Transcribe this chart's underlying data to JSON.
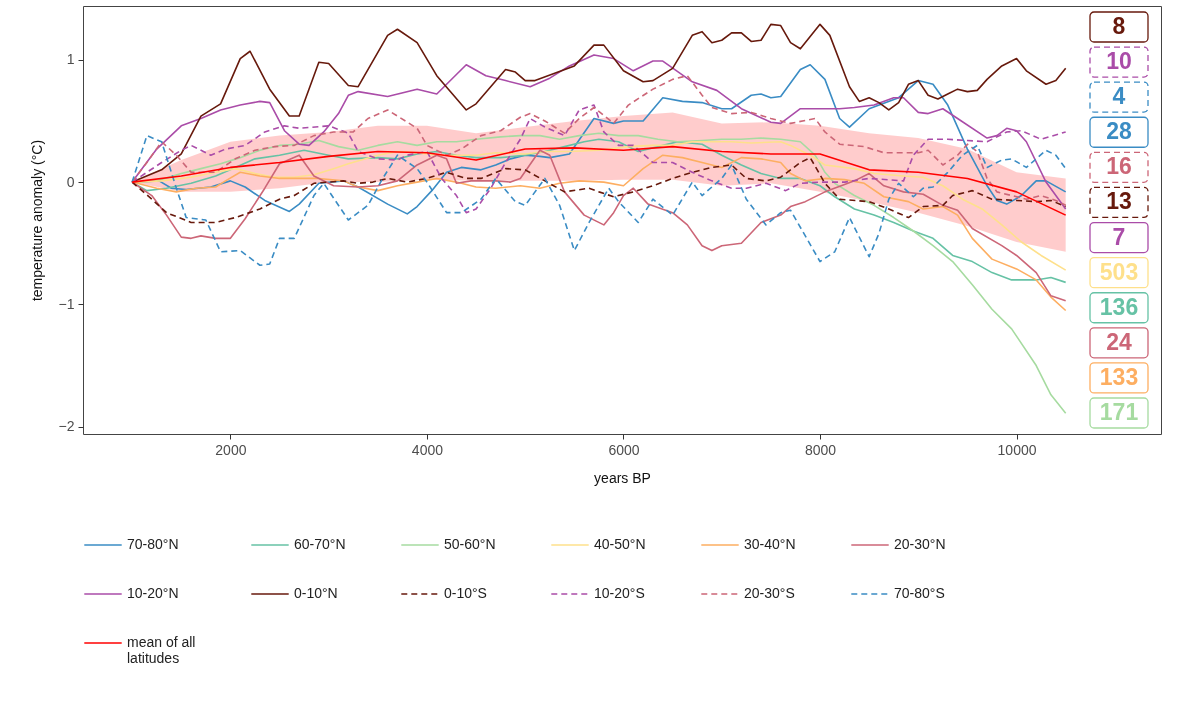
{
  "chart_data": {
    "type": "line",
    "xlabel": "years BP",
    "ylabel": "temperature anomaly (°C)",
    "xlim": [
      500,
      11470
    ],
    "ylim": [
      -2.06,
      1.44
    ],
    "xticks": [
      2000,
      4000,
      6000,
      8000,
      10000
    ],
    "yticks": [
      -2,
      -1,
      0,
      1
    ],
    "legend": "bottom",
    "annotations": [
      "8",
      "10",
      "4",
      "28",
      "16",
      "13",
      "7",
      "503",
      "136",
      "24",
      "133",
      "171"
    ],
    "series": [
      {
        "name": "70-80°N",
        "color": "#3a8cc4",
        "line_style": "solid",
        "x": [
          1000,
          1275,
          1400,
          1550,
          1800,
          2000,
          2150,
          2350,
          2600,
          2700,
          2900,
          3150,
          3300,
          3600,
          3800,
          3900,
          4050,
          4200,
          4350,
          4550,
          4700,
          4850,
          5000,
          5150,
          5250,
          5450,
          5700,
          5900,
          6000,
          6200,
          6400,
          6600,
          6800,
          7000,
          7100,
          7300,
          7400,
          7500,
          7600,
          7800,
          7900,
          8050,
          8200,
          8300,
          8500,
          8800,
          9000,
          9150,
          9300,
          9500,
          9700,
          9800,
          9900,
          10050,
          10200,
          10300,
          10500
        ],
        "values": [
          0,
          0.01,
          -0.05,
          -0.06,
          -0.04,
          0.01,
          -0.04,
          -0.15,
          -0.24,
          -0.18,
          -0.01,
          0.01,
          -0.04,
          -0.18,
          -0.26,
          -0.2,
          -0.07,
          0.08,
          0.12,
          0.1,
          0.14,
          0.19,
          0.22,
          0.21,
          0.2,
          0.23,
          0.52,
          0.48,
          0.5,
          0.5,
          0.69,
          0.66,
          0.65,
          0.6,
          0.6,
          0.71,
          0.72,
          0.69,
          0.7,
          0.92,
          0.96,
          0.84,
          0.52,
          0.45,
          0.6,
          0.69,
          0.83,
          0.8,
          0.63,
          0.27,
          -0.03,
          -0.15,
          -0.18,
          -0.11,
          0.01,
          0.01,
          -0.08
        ]
      },
      {
        "name": "60-70°N",
        "color": "#66c2a5",
        "line_style": "solid",
        "x": [
          1000,
          1150,
          1350,
          1600,
          1850,
          2050,
          2250,
          2500,
          2750,
          3000,
          3200,
          3500,
          3700,
          3900,
          4100,
          4300,
          4500,
          4750,
          5000,
          5200,
          5400,
          5600,
          5750,
          5950,
          6150,
          6350,
          6550,
          6800,
          7000,
          7200,
          7400,
          7600,
          7800,
          8000,
          8150,
          8350,
          8550,
          8750,
          8950,
          9150,
          9350,
          9550,
          9750,
          9950,
          10200,
          10350,
          10500
        ],
        "values": [
          0,
          -0.07,
          -0.05,
          -0.01,
          0.05,
          0.12,
          0.19,
          0.22,
          0.26,
          0.22,
          0.19,
          0.2,
          0.19,
          0.23,
          0.25,
          0.22,
          0.2,
          0.2,
          0.22,
          0.25,
          0.29,
          0.33,
          0.35,
          0.33,
          0.25,
          0.29,
          0.33,
          0.31,
          0.22,
          0.14,
          0.07,
          0.03,
          0.03,
          -0.03,
          -0.12,
          -0.22,
          -0.27,
          -0.33,
          -0.4,
          -0.46,
          -0.6,
          -0.65,
          -0.74,
          -0.8,
          -0.8,
          -0.78,
          -0.82
        ]
      },
      {
        "name": "50-60°N",
        "color": "#a6dba0",
        "line_style": "solid",
        "x": [
          1000,
          1250,
          1500,
          1700,
          1900,
          2100,
          2300,
          2500,
          2700,
          2900,
          3100,
          3300,
          3500,
          3700,
          3900,
          4100,
          4300,
          4500,
          4750,
          4950,
          5150,
          5350,
          5550,
          5750,
          5950,
          6150,
          6350,
          6550,
          6800,
          7000,
          7200,
          7400,
          7600,
          7800,
          7950,
          8050,
          8150,
          8350,
          8550,
          8750,
          8950,
          9150,
          9350,
          9550,
          9750,
          9950,
          10200,
          10350,
          10500
        ],
        "values": [
          0,
          0.01,
          0.07,
          0.11,
          0.15,
          0.2,
          0.26,
          0.3,
          0.31,
          0.34,
          0.29,
          0.26,
          0.3,
          0.33,
          0.3,
          0.33,
          0.33,
          0.35,
          0.37,
          0.38,
          0.38,
          0.35,
          0.38,
          0.4,
          0.38,
          0.38,
          0.35,
          0.33,
          0.34,
          0.35,
          0.35,
          0.36,
          0.35,
          0.33,
          0.22,
          0.08,
          -0.01,
          -0.11,
          -0.19,
          -0.29,
          -0.4,
          -0.52,
          -0.65,
          -0.84,
          -1.04,
          -1.2,
          -1.5,
          -1.74,
          -1.89
        ]
      },
      {
        "name": "40-50°N",
        "color": "#fee08b",
        "line_style": "solid",
        "x": [
          1000,
          1300,
          1600,
          1850,
          2050,
          2250,
          2450,
          2650,
          2850,
          3050,
          3200,
          3500,
          3700,
          3900,
          4100,
          4300,
          4500,
          4700,
          5000,
          5200,
          5450,
          5750,
          6050,
          6300,
          6500,
          6700,
          6900,
          7100,
          7300,
          7600,
          7700,
          7900,
          8050,
          8350,
          8550,
          8850,
          9050,
          9250,
          9450,
          9650,
          9850,
          10050,
          10250,
          10500
        ],
        "values": [
          0,
          0.01,
          0.04,
          0.08,
          0.11,
          0.07,
          0.04,
          0.04,
          0.06,
          0.11,
          0.15,
          0.22,
          0.25,
          0.24,
          0.22,
          0.22,
          0.22,
          0.24,
          0.23,
          0.25,
          0.25,
          0.26,
          0.29,
          0.3,
          0.3,
          0.33,
          0.33,
          0.33,
          0.32,
          0.33,
          0.3,
          0.22,
          0.14,
          0.11,
          0.07,
          0.05,
          0.04,
          -0.03,
          -0.14,
          -0.22,
          -0.35,
          -0.49,
          -0.6,
          -0.72
        ]
      },
      {
        "name": "30-40°N",
        "color": "#fdae61",
        "line_style": "solid",
        "x": [
          1000,
          1250,
          1450,
          1650,
          1850,
          1950,
          2100,
          2300,
          2500,
          2900,
          3150,
          3300,
          3500,
          3700,
          3900,
          4100,
          4300,
          4500,
          4700,
          4950,
          5150,
          5350,
          5550,
          5800,
          6000,
          6200,
          6400,
          6600,
          6800,
          7000,
          7200,
          7400,
          7600,
          7700,
          7850,
          8050,
          8250,
          8450,
          8650,
          8900,
          9050,
          9250,
          9400,
          9550,
          9750,
          10000,
          10200,
          10350,
          10500
        ],
        "values": [
          0,
          -0.05,
          -0.08,
          -0.05,
          -0.04,
          0.01,
          0.08,
          0.05,
          0.03,
          0.03,
          0.01,
          -0.04,
          -0.07,
          -0.03,
          0,
          0.03,
          0,
          -0.04,
          -0.05,
          -0.03,
          -0.05,
          -0.01,
          0.01,
          0,
          -0.03,
          0.11,
          0.22,
          0.2,
          0.16,
          0.12,
          0.2,
          0.19,
          0.16,
          0.07,
          0.01,
          0.03,
          0.02,
          -0.01,
          -0.12,
          -0.16,
          -0.22,
          -0.2,
          -0.27,
          -0.46,
          -0.63,
          -0.71,
          -0.8,
          -0.94,
          -1.05
        ]
      },
      {
        "name": "20-30°N",
        "color": "#cc6677",
        "line_style": "solid",
        "x": [
          1000,
          1200,
          1350,
          1500,
          1600,
          1700,
          1850,
          2000,
          2150,
          2350,
          2500,
          2700,
          2850,
          3050,
          3300,
          3500,
          3700,
          3900,
          4100,
          4200,
          4300,
          4450,
          4700,
          4850,
          4950,
          5150,
          5250,
          5400,
          5600,
          5800,
          5900,
          6000,
          6100,
          6250,
          6500,
          6650,
          6800,
          6900,
          7000,
          7200,
          7400,
          7600,
          7700,
          7850,
          8050,
          8250,
          8350,
          8500,
          8650,
          8850,
          9050,
          9250,
          9400,
          9550,
          9850,
          10000,
          10200,
          10350,
          10500
        ],
        "values": [
          0,
          -0.11,
          -0.27,
          -0.45,
          -0.46,
          -0.44,
          -0.46,
          -0.46,
          -0.3,
          -0.05,
          0.15,
          0.22,
          0.05,
          -0.03,
          -0.04,
          -0.03,
          0.01,
          0.14,
          0.22,
          0.19,
          -0.01,
          0.01,
          0.01,
          0,
          0.03,
          0.26,
          0.22,
          -0.08,
          -0.27,
          -0.35,
          -0.25,
          -0.11,
          -0.05,
          -0.18,
          -0.25,
          -0.35,
          -0.52,
          -0.56,
          -0.52,
          -0.5,
          -0.33,
          -0.27,
          -0.2,
          -0.16,
          -0.08,
          -0.02,
          0.01,
          0.07,
          -0.03,
          -0.08,
          -0.1,
          -0.19,
          -0.23,
          -0.38,
          -0.52,
          -0.6,
          -0.74,
          -0.93,
          -0.97
        ]
      },
      {
        "name": "10-20°N",
        "color": "#aa4ca8",
        "line_style": "solid",
        "x": [
          1000,
          1250,
          1500,
          1700,
          1900,
          2100,
          2300,
          2400,
          2550,
          2700,
          2800,
          2950,
          3100,
          3200,
          3300,
          3600,
          3900,
          4100,
          4400,
          4600,
          4800,
          5050,
          5250,
          5450,
          5700,
          5900,
          6100,
          6300,
          6400,
          6700,
          6950,
          7200,
          7500,
          7600,
          7800,
          7950,
          8200,
          8350,
          8550,
          8750,
          8850,
          9000,
          9100,
          9250,
          9400,
          9700,
          9800,
          9900,
          10000,
          10100,
          10300,
          10500
        ],
        "values": [
          0,
          0.27,
          0.46,
          0.52,
          0.59,
          0.63,
          0.66,
          0.65,
          0.42,
          0.31,
          0.3,
          0.41,
          0.56,
          0.71,
          0.74,
          0.7,
          0.76,
          0.72,
          0.96,
          0.87,
          0.83,
          0.78,
          0.85,
          0.95,
          1.04,
          1.01,
          0.91,
          0.99,
          0.99,
          0.82,
          0.75,
          0.6,
          0.49,
          0.48,
          0.6,
          0.6,
          0.6,
          0.61,
          0.63,
          0.69,
          0.69,
          0.57,
          0.56,
          0.6,
          0.52,
          0.36,
          0.38,
          0.44,
          0.42,
          0.33,
          0,
          -0.22
        ]
      },
      {
        "name": "0-10°N",
        "color": "#67190c",
        "line_style": "solid",
        "x": [
          1000,
          1300,
          1500,
          1700,
          1900,
          2100,
          2200,
          2400,
          2600,
          2700,
          2900,
          3000,
          3200,
          3300,
          3600,
          3700,
          3900,
          4100,
          4400,
          4500,
          4800,
          4900,
          5000,
          5100,
          5300,
          5500,
          5700,
          5800,
          6000,
          6200,
          6300,
          6500,
          6700,
          6800,
          6900,
          7000,
          7100,
          7200,
          7300,
          7400,
          7500,
          7600,
          7700,
          7800,
          8000,
          8100,
          8300,
          8400,
          8500,
          8600,
          8700,
          8800,
          8900,
          9000,
          9100,
          9200,
          9300,
          9400,
          9500,
          9600,
          9700,
          9850,
          10000,
          10100,
          10300,
          10400,
          10500
        ],
        "values": [
          0,
          0.1,
          0.23,
          0.54,
          0.64,
          1.01,
          1.07,
          0.76,
          0.54,
          0.54,
          0.98,
          0.97,
          0.79,
          0.78,
          1.2,
          1.25,
          1.14,
          0.87,
          0.59,
          0.64,
          0.92,
          0.9,
          0.83,
          0.83,
          0.89,
          0.95,
          1.12,
          1.12,
          0.91,
          0.82,
          0.83,
          0.93,
          1.2,
          1.23,
          1.14,
          1.16,
          1.22,
          1.22,
          1.15,
          1.16,
          1.29,
          1.28,
          1.14,
          1.09,
          1.29,
          1.2,
          0.78,
          0.66,
          0.69,
          0.65,
          0.59,
          0.65,
          0.8,
          0.83,
          0.71,
          0.68,
          0.72,
          0.76,
          0.74,
          0.75,
          0.84,
          0.95,
          1.01,
          0.91,
          0.8,
          0.83,
          0.93
        ]
      },
      {
        "name": "0-10°S",
        "color": "#67190c",
        "line_style": "dashed",
        "x": [
          1000,
          1200,
          1350,
          1600,
          1850,
          2050,
          2300,
          2500,
          2650,
          2850,
          3150,
          3300,
          3450,
          3600,
          3800,
          4000,
          4200,
          4400,
          4550,
          4800,
          5000,
          5200,
          5400,
          5650,
          5750,
          5900,
          6100,
          6300,
          6500,
          6700,
          6900,
          7100,
          7250,
          7450,
          7600,
          7800,
          7900,
          8050,
          8200,
          8500,
          8700,
          8900,
          9050,
          9250,
          9350,
          9550,
          9750,
          10000,
          10200,
          10350,
          10500
        ],
        "values": [
          0,
          -0.14,
          -0.25,
          -0.33,
          -0.33,
          -0.29,
          -0.22,
          -0.14,
          -0.11,
          -0.01,
          0.01,
          -0.01,
          0,
          0.03,
          0,
          0.03,
          0.08,
          0.03,
          0.03,
          0.11,
          0.1,
          0.01,
          -0.08,
          -0.05,
          -0.08,
          -0.12,
          -0.08,
          -0.03,
          0.03,
          0.08,
          0.12,
          0.14,
          0.03,
          0.01,
          0.04,
          0.16,
          0.2,
          -0.01,
          -0.14,
          -0.16,
          -0.22,
          -0.29,
          -0.2,
          -0.19,
          -0.11,
          -0.07,
          -0.14,
          -0.15,
          -0.16,
          -0.15,
          -0.2
        ]
      },
      {
        "name": "10-20°S",
        "color": "#aa4ca8",
        "line_style": "dashed",
        "x": [
          1000,
          1300,
          1500,
          1600,
          1800,
          1950,
          2150,
          2350,
          2550,
          2700,
          3000,
          3200,
          3300,
          3500,
          3700,
          3800,
          4000,
          4150,
          4300,
          4400,
          4500,
          4650,
          4800,
          4950,
          5050,
          5200,
          5400,
          5550,
          5700,
          5800,
          5950,
          6100,
          6300,
          6500,
          6700,
          6900,
          7100,
          7250,
          7450,
          7650,
          7800,
          8000,
          8250,
          8500,
          8850,
          8950,
          9100,
          9300,
          9500,
          9700,
          9900,
          10050,
          10250,
          10500
        ],
        "values": [
          0,
          0.16,
          0.26,
          0.3,
          0.22,
          0.27,
          0.3,
          0.41,
          0.46,
          0.44,
          0.46,
          0.4,
          0.25,
          0.19,
          0.18,
          0.22,
          0.25,
          0.03,
          -0.11,
          -0.25,
          -0.22,
          -0.05,
          0.16,
          0.35,
          0.52,
          0.45,
          0.38,
          0.59,
          0.63,
          0.41,
          0.3,
          0.3,
          0.16,
          0.16,
          0.08,
          0.01,
          -0.05,
          -0.05,
          -0.01,
          -0.07,
          -0.01,
          0,
          0,
          0.03,
          0.01,
          0.22,
          0.35,
          0.35,
          0.34,
          0.33,
          0.41,
          0.42,
          0.35,
          0.41
        ]
      },
      {
        "name": "20-30°S",
        "color": "#cc6677",
        "line_style": "dashed",
        "x": [
          1000,
          1150,
          1300,
          1450,
          1600,
          1850,
          2050,
          2250,
          2450,
          2650,
          2850,
          3050,
          3250,
          3400,
          3600,
          3700,
          3900,
          4000,
          4200,
          4350,
          4550,
          4750,
          4950,
          5050,
          5200,
          5400,
          5550,
          5700,
          5900,
          6050,
          6300,
          6500,
          6650,
          6800,
          6900,
          7100,
          7300,
          7500,
          7700,
          7950,
          8050,
          8200,
          8450,
          8650,
          9000,
          9100,
          9250,
          9400,
          9500,
          9600,
          9700,
          9800,
          9950,
          10100,
          10250,
          10400,
          10500
        ],
        "values": [
          0,
          0.16,
          0.33,
          0.22,
          0.08,
          0.08,
          0.19,
          0.26,
          0.29,
          0.3,
          0.38,
          0.41,
          0.41,
          0.52,
          0.59,
          0.54,
          0.44,
          0.3,
          0.22,
          0.27,
          0.38,
          0.42,
          0.53,
          0.56,
          0.5,
          0.4,
          0.52,
          0.61,
          0.48,
          0.63,
          0.76,
          0.84,
          0.87,
          0.71,
          0.61,
          0.56,
          0.57,
          0.52,
          0.48,
          0.52,
          0.41,
          0.31,
          0.29,
          0.24,
          0.24,
          0.26,
          0.14,
          0.22,
          0.31,
          0.25,
          0.03,
          -0.08,
          -0.11,
          -0.14,
          -0.11,
          -0.15,
          -0.19
        ]
      },
      {
        "name": "70-80°S",
        "color": "#3a8cc4",
        "line_style": "dashed",
        "x": [
          1000,
          1150,
          1300,
          1450,
          1550,
          1750,
          1900,
          2100,
          2300,
          2400,
          2500,
          2650,
          2850,
          2950,
          3200,
          3400,
          3550,
          3700,
          3900,
          4000,
          4200,
          4350,
          4550,
          4700,
          4900,
          5000,
          5200,
          5350,
          5500,
          5650,
          5850,
          5950,
          6150,
          6300,
          6500,
          6700,
          6800,
          7000,
          7100,
          7250,
          7450,
          7600,
          7700,
          8000,
          8150,
          8300,
          8500,
          8600,
          8700,
          8800,
          8950,
          9050,
          9150,
          9300,
          9450,
          9600,
          9700,
          9850,
          9950,
          10100,
          10300,
          10400,
          10500
        ],
        "values": [
          0,
          0.38,
          0.33,
          -0.05,
          -0.29,
          -0.31,
          -0.57,
          -0.56,
          -0.68,
          -0.67,
          -0.46,
          -0.46,
          -0.11,
          -0.01,
          -0.31,
          -0.19,
          0.03,
          0.22,
          0.11,
          0,
          -0.25,
          -0.25,
          -0.14,
          0.03,
          -0.16,
          -0.19,
          0.03,
          -0.19,
          -0.56,
          -0.33,
          -0.05,
          -0.16,
          -0.33,
          -0.14,
          -0.27,
          0,
          -0.11,
          0.03,
          0.14,
          -0.14,
          -0.35,
          -0.25,
          -0.23,
          -0.65,
          -0.57,
          -0.29,
          -0.61,
          -0.42,
          -0.14,
          -0.01,
          -0.12,
          -0.05,
          -0.04,
          0.08,
          0.22,
          0.3,
          0.12,
          0.18,
          0.19,
          0.12,
          0.26,
          0.22,
          0.11
        ]
      },
      {
        "name": "mean of all latitudes",
        "color": "#ff0000",
        "line_style": "solid",
        "x": [
          1000,
          1500,
          2000,
          2500,
          3000,
          3500,
          4000,
          4500,
          5000,
          5500,
          6000,
          6500,
          7000,
          7500,
          8000,
          8500,
          9000,
          9500,
          10000,
          10500
        ],
        "values": [
          0,
          0.05,
          0.12,
          0.16,
          0.21,
          0.25,
          0.24,
          0.18,
          0.27,
          0.28,
          0.26,
          0.29,
          0.25,
          0.23,
          0.23,
          0.1,
          0.08,
          0.03,
          -0.08,
          -0.27
        ],
        "lower": [
          0,
          -0.08,
          -0.08,
          -0.05,
          0,
          0,
          0.02,
          0.01,
          0.01,
          0.01,
          0.02,
          0.02,
          -0.03,
          -0.01,
          -0.08,
          -0.16,
          -0.25,
          -0.36,
          -0.49,
          -0.57
        ],
        "upper": [
          0,
          0.18,
          0.33,
          0.38,
          0.41,
          0.46,
          0.46,
          0.4,
          0.45,
          0.5,
          0.54,
          0.57,
          0.48,
          0.49,
          0.46,
          0.4,
          0.36,
          0.27,
          0.08,
          0.03
        ]
      }
    ]
  }
}
